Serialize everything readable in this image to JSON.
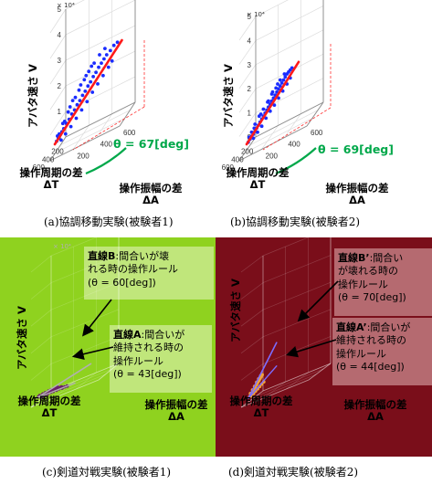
{
  "chart_data": [
    {
      "type": "scatter",
      "caption": "(a)協調移動実験(被験者1)",
      "ylabel": "アバタ速さ V",
      "xlabel1": "操作周期の差",
      "xlabel1_sym": "ΔT",
      "xlabel2": "操作振幅の差",
      "xlabel2_sym": "ΔA",
      "y_exponent": "× 10⁴",
      "y_ticks": [
        "0",
        "1",
        "2",
        "3",
        "4",
        "5"
      ],
      "t_ticks": [
        "200",
        "400",
        "600"
      ],
      "a_ticks": [
        "200",
        "400",
        "600"
      ],
      "theta_label": "θ = 67[deg]",
      "background": "#ffffff",
      "point_color": "#1a2cff",
      "line_color": "#ff1a1a",
      "annotations": [],
      "points": [
        [
          0.02,
          0.03
        ],
        [
          0.04,
          0.06
        ],
        [
          0.06,
          0.09
        ],
        [
          0.08,
          0.12
        ],
        [
          0.1,
          0.15
        ],
        [
          0.13,
          0.2
        ],
        [
          0.16,
          0.24
        ],
        [
          0.19,
          0.29
        ],
        [
          0.22,
          0.33
        ],
        [
          0.25,
          0.38
        ],
        [
          0.28,
          0.42
        ],
        [
          0.31,
          0.47
        ],
        [
          0.34,
          0.51
        ],
        [
          0.37,
          0.56
        ],
        [
          0.4,
          0.6
        ],
        [
          0.43,
          0.65
        ],
        [
          0.46,
          0.69
        ],
        [
          0.49,
          0.74
        ],
        [
          0.52,
          0.78
        ],
        [
          0.55,
          0.82
        ],
        [
          0.58,
          0.86
        ],
        [
          0.62,
          0.9
        ],
        [
          0.66,
          0.95
        ],
        [
          0.7,
          0.98
        ],
        [
          0.05,
          0.1
        ],
        [
          0.09,
          0.2
        ],
        [
          0.15,
          0.31
        ],
        [
          0.2,
          0.42
        ],
        [
          0.27,
          0.52
        ],
        [
          0.33,
          0.62
        ],
        [
          0.38,
          0.7
        ],
        [
          0.44,
          0.78
        ],
        [
          0.5,
          0.86
        ],
        [
          0.56,
          0.92
        ],
        [
          0.07,
          0.04
        ],
        [
          0.12,
          0.1
        ],
        [
          0.18,
          0.17
        ],
        [
          0.24,
          0.25
        ],
        [
          0.3,
          0.33
        ],
        [
          0.36,
          0.41
        ],
        [
          0.42,
          0.5
        ],
        [
          0.48,
          0.58
        ],
        [
          0.54,
          0.66
        ],
        [
          0.6,
          0.74
        ],
        [
          0.64,
          0.8
        ],
        [
          0.03,
          0.08
        ],
        [
          0.11,
          0.22
        ],
        [
          0.17,
          0.36
        ],
        [
          0.23,
          0.45
        ],
        [
          0.29,
          0.57
        ],
        [
          0.35,
          0.66
        ],
        [
          0.41,
          0.75
        ]
      ],
      "fit_line": [
        [
          0,
          0
        ],
        [
          0.75,
          1.0
        ]
      ]
    },
    {
      "type": "scatter",
      "caption": "(b)協調移動実験(被験者2)",
      "ylabel": "アバタ速さ V",
      "xlabel1": "操作周期の差",
      "xlabel1_sym": "ΔT",
      "xlabel2": "操作振幅の差",
      "xlabel2_sym": "ΔA",
      "y_exponent": "× 10⁴",
      "y_ticks": [
        "0",
        "1",
        "2",
        "3",
        "4",
        "5"
      ],
      "t_ticks": [
        "200",
        "400",
        "600"
      ],
      "a_ticks": [
        "200",
        "400",
        "600"
      ],
      "theta_label": "θ = 69[deg]",
      "background": "#ffffff",
      "point_color": "#1a2cff",
      "line_color": "#ff1a1a",
      "annotations": [],
      "points": [
        [
          0.02,
          0.02
        ],
        [
          0.04,
          0.05
        ],
        [
          0.06,
          0.08
        ],
        [
          0.08,
          0.1
        ],
        [
          0.1,
          0.13
        ],
        [
          0.12,
          0.16
        ],
        [
          0.14,
          0.19
        ],
        [
          0.16,
          0.22
        ],
        [
          0.18,
          0.25
        ],
        [
          0.2,
          0.28
        ],
        [
          0.22,
          0.31
        ],
        [
          0.24,
          0.34
        ],
        [
          0.26,
          0.37
        ],
        [
          0.28,
          0.4
        ],
        [
          0.3,
          0.43
        ],
        [
          0.32,
          0.46
        ],
        [
          0.34,
          0.49
        ],
        [
          0.36,
          0.52
        ],
        [
          0.38,
          0.55
        ],
        [
          0.4,
          0.58
        ],
        [
          0.42,
          0.61
        ],
        [
          0.44,
          0.64
        ],
        [
          0.46,
          0.67
        ],
        [
          0.48,
          0.7
        ],
        [
          0.5,
          0.72
        ],
        [
          0.52,
          0.74
        ],
        [
          0.54,
          0.76
        ],
        [
          0.06,
          0.12
        ],
        [
          0.1,
          0.2
        ],
        [
          0.15,
          0.28
        ],
        [
          0.2,
          0.35
        ],
        [
          0.26,
          0.43
        ],
        [
          0.3,
          0.5
        ],
        [
          0.35,
          0.56
        ],
        [
          0.4,
          0.64
        ],
        [
          0.45,
          0.7
        ],
        [
          0.08,
          0.06
        ],
        [
          0.13,
          0.12
        ],
        [
          0.18,
          0.18
        ],
        [
          0.23,
          0.26
        ],
        [
          0.28,
          0.33
        ],
        [
          0.33,
          0.39
        ],
        [
          0.38,
          0.46
        ],
        [
          0.43,
          0.53
        ],
        [
          0.48,
          0.6
        ],
        [
          0.52,
          0.66
        ],
        [
          0.03,
          0.07
        ],
        [
          0.09,
          0.16
        ],
        [
          0.17,
          0.3
        ],
        [
          0.25,
          0.42
        ],
        [
          0.31,
          0.52
        ],
        [
          0.37,
          0.6
        ]
      ],
      "fit_line": [
        [
          0,
          0
        ],
        [
          0.62,
          0.82
        ]
      ]
    },
    {
      "type": "scatter",
      "caption": "(c)剣道対戦実験(被験者1)",
      "ylabel": "アバタ速さ V",
      "xlabel1": "操作周期の差",
      "xlabel1_sym": "ΔT",
      "xlabel2": "操作振幅の差",
      "xlabel2_sym": "ΔA",
      "y_exponent": "× 10⁴",
      "y_ticks": [],
      "t_ticks": [],
      "a_ticks": [],
      "theta_label": "",
      "background": "#8fd21f",
      "point_color": "#6b1f6b",
      "line_color": "#b0b0b0",
      "annotations": [
        {
          "title": "直線B",
          "text": ":間合いが壊れる時の操作ルール(θ = 60[deg])",
          "lines": [
            "直線B:間合いが壊",
            "れる時の操作ルール",
            "(θ = 60[deg])"
          ]
        },
        {
          "title": "直線A",
          "text": ":間合いが維持される時の操作ルール(θ = 43[deg])",
          "lines": [
            "直線A:間合いが",
            "維持される時の",
            "操作ルール",
            "(θ = 43[deg])"
          ]
        }
      ],
      "points": [
        [
          0.03,
          0.03
        ],
        [
          0.06,
          0.05
        ],
        [
          0.09,
          0.07
        ],
        [
          0.12,
          0.09
        ],
        [
          0.15,
          0.11
        ],
        [
          0.18,
          0.13
        ],
        [
          0.21,
          0.15
        ],
        [
          0.24,
          0.17
        ],
        [
          0.27,
          0.19
        ],
        [
          0.3,
          0.21
        ],
        [
          0.33,
          0.23
        ],
        [
          0.36,
          0.25
        ],
        [
          0.39,
          0.27
        ],
        [
          0.05,
          0.06
        ],
        [
          0.1,
          0.1
        ],
        [
          0.14,
          0.13
        ],
        [
          0.19,
          0.17
        ],
        [
          0.23,
          0.2
        ],
        [
          0.28,
          0.24
        ],
        [
          0.32,
          0.27
        ],
        [
          0.08,
          0.04
        ],
        [
          0.13,
          0.08
        ],
        [
          0.17,
          0.1
        ],
        [
          0.22,
          0.14
        ],
        [
          0.26,
          0.16
        ],
        [
          0.31,
          0.19
        ],
        [
          0.35,
          0.22
        ],
        [
          0.4,
          0.24
        ],
        [
          0.44,
          0.27
        ],
        [
          0.48,
          0.29
        ]
      ],
      "fit_line": [
        [
          0,
          0
        ],
        [
          0.85,
          0.82
        ]
      ],
      "fit_line2": [
        [
          0,
          0
        ],
        [
          0.6,
          0.36
        ]
      ]
    },
    {
      "type": "scatter",
      "caption": "(d)剣道対戦実験(被験者2)",
      "ylabel": "アバタ速さ V",
      "xlabel1": "操作周期の差",
      "xlabel1_sym": "ΔT",
      "xlabel2": "操作振幅の差",
      "xlabel2_sym": "ΔA",
      "y_exponent": "",
      "y_ticks": [],
      "t_ticks": [],
      "a_ticks": [],
      "theta_label": "",
      "background": "#7a0e1a",
      "point_color": "#f2a23a",
      "line_color": "#7c6cff",
      "annotations": [
        {
          "title": "直線B’",
          "text": ":間合いが壊れる時の操作ルール(θ = 70[deg])",
          "lines": [
            "直線B’:間合い",
            "が壊れる時の",
            "操作ルール",
            "(θ = 70[deg])"
          ]
        },
        {
          "title": "直線A’",
          "text": ":間合いが維持される時の操作ルール(θ = 44[deg])",
          "lines": [
            "直線A’:間合いが",
            "維持される時の",
            "操作ルール",
            "(θ = 44[deg])"
          ]
        }
      ],
      "points": [
        [
          0.03,
          0.03
        ],
        [
          0.05,
          0.06
        ],
        [
          0.07,
          0.09
        ],
        [
          0.09,
          0.12
        ],
        [
          0.11,
          0.15
        ],
        [
          0.13,
          0.18
        ],
        [
          0.15,
          0.22
        ],
        [
          0.17,
          0.25
        ],
        [
          0.19,
          0.28
        ],
        [
          0.21,
          0.31
        ],
        [
          0.23,
          0.34
        ],
        [
          0.25,
          0.37
        ],
        [
          0.27,
          0.4
        ],
        [
          0.06,
          0.04
        ],
        [
          0.1,
          0.08
        ],
        [
          0.14,
          0.12
        ],
        [
          0.18,
          0.16
        ],
        [
          0.22,
          0.2
        ],
        [
          0.26,
          0.24
        ],
        [
          0.3,
          0.28
        ],
        [
          0.04,
          0.08
        ],
        [
          0.08,
          0.14
        ],
        [
          0.12,
          0.2
        ],
        [
          0.16,
          0.27
        ],
        [
          0.2,
          0.33
        ],
        [
          0.24,
          0.38
        ]
      ],
      "fit_line": [
        [
          0,
          0
        ],
        [
          0.55,
          0.95
        ]
      ],
      "fit_line2": [
        [
          0,
          0
        ],
        [
          0.55,
          0.55
        ]
      ]
    }
  ]
}
